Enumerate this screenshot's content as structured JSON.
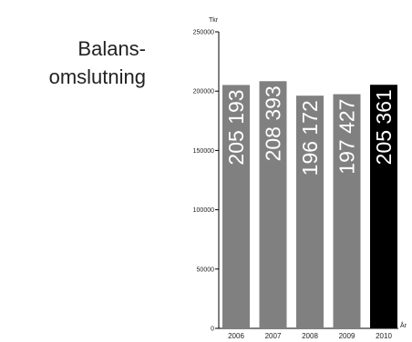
{
  "chart_data": {
    "type": "bar",
    "title_lines": [
      "Balans-",
      "omslutning"
    ],
    "ylabel": "Tkr",
    "xlabel": "År",
    "categories": [
      "2006",
      "2007",
      "2008",
      "2009",
      "2010"
    ],
    "values": [
      205193,
      208393,
      196172,
      197427,
      205361
    ],
    "value_labels": [
      "205 193",
      "208 393",
      "196 172",
      "197 427",
      "205 361"
    ],
    "ylim": [
      0,
      250000
    ],
    "yticks": [
      0,
      50000,
      100000,
      150000,
      200000,
      250000
    ],
    "ytick_labels": [
      "0",
      "50000",
      "100000",
      "150000",
      "200000",
      "250000"
    ],
    "grid": false,
    "legend": "none",
    "colors": {
      "bar": "#808080",
      "highlight_bar": "#000000",
      "axis": "#000000"
    },
    "highlight_index": 4
  }
}
